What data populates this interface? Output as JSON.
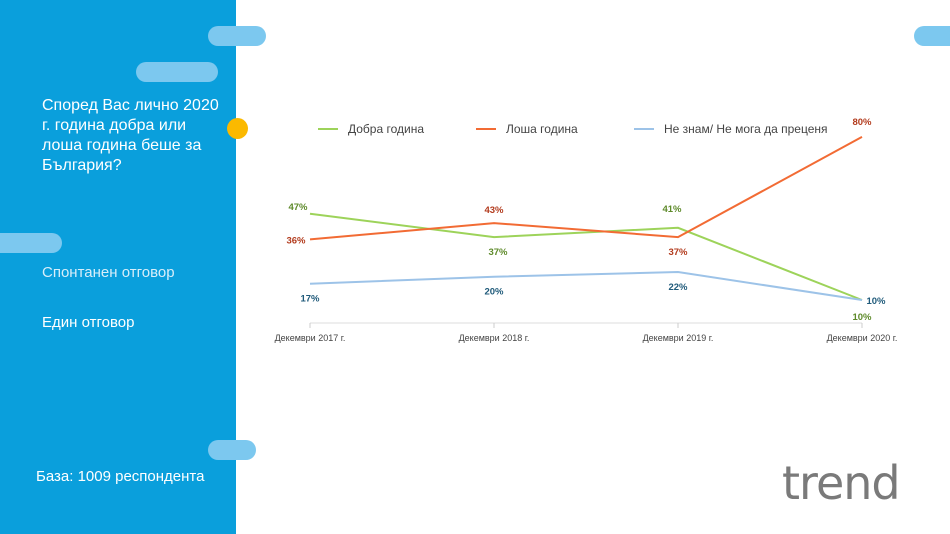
{
  "sidebar": {
    "question": "Според Вас лично 2020 г. година добра или лоша година беше за България?",
    "type1": "Спонтанен отговор",
    "type2": "Един отговор",
    "base": "База: 1009 респондента"
  },
  "logo": "trend",
  "chart_data": {
    "type": "line",
    "categories": [
      "Декември 2017 г.",
      "Декември 2018 г.",
      "Декември 2019 г.",
      "Декември 2020 г."
    ],
    "series": [
      {
        "name": "Добра година",
        "color": "#9dd35a",
        "label_color": "#5e8a2a",
        "values": [
          47,
          37,
          41,
          10
        ]
      },
      {
        "name": "Лоша година",
        "color": "#f26b34",
        "label_color": "#b23a1c",
        "values": [
          36,
          43,
          37,
          80
        ]
      },
      {
        "name": "Не знам/ Не мога да преценя",
        "color": "#9dc3e8",
        "label_color": "#1f5a7a",
        "values": [
          17,
          20,
          22,
          10
        ]
      }
    ],
    "ylim": [
      0,
      80
    ],
    "legend": "top",
    "unit": "%"
  }
}
